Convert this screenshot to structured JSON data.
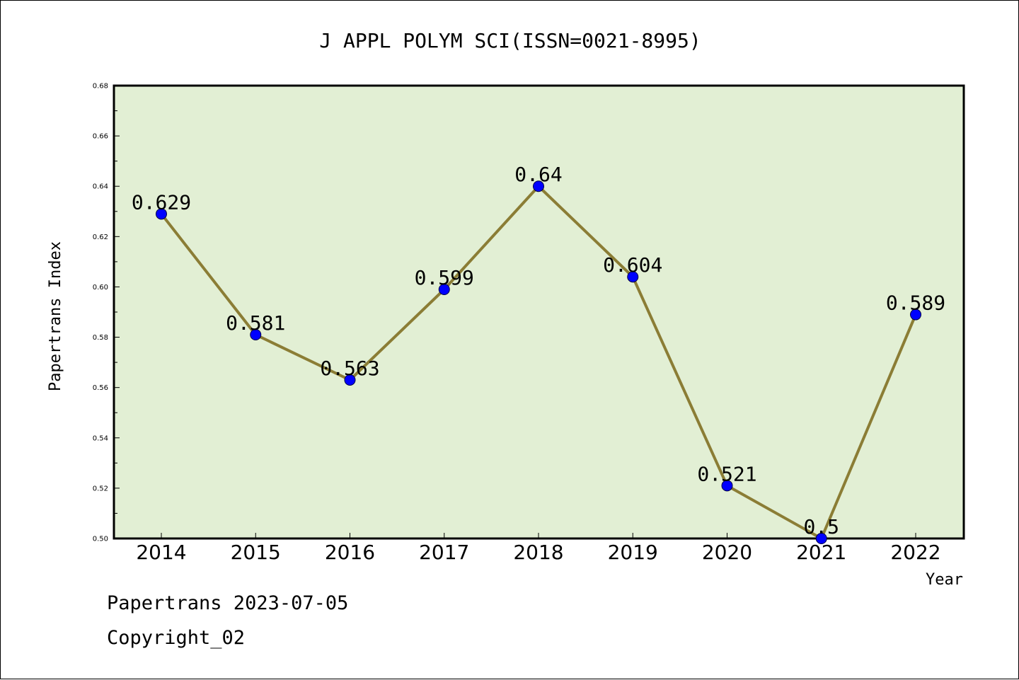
{
  "chart_data": {
    "type": "line",
    "title": "J APPL POLYM SCI(ISSN=0021-8995)",
    "xlabel": "Year",
    "ylabel": "Papertrans Index",
    "categories": [
      "2014",
      "2015",
      "2016",
      "2017",
      "2018",
      "2019",
      "2020",
      "2021",
      "2022"
    ],
    "series": [
      {
        "values": [
          0.629,
          0.581,
          0.563,
          0.599,
          0.64,
          0.604,
          0.521,
          0.5,
          0.589
        ],
        "labels": [
          "0.629",
          "0.581",
          "0.563",
          "0.599",
          "0.64",
          "0.604",
          "0.521",
          "0.5",
          "0.589"
        ]
      }
    ],
    "ylim": [
      0.5,
      0.68
    ],
    "yticks": [
      "0.50",
      "0.52",
      "0.54",
      "0.56",
      "0.58",
      "0.60",
      "0.62",
      "0.64",
      "0.66",
      "0.68"
    ],
    "grid": false,
    "legend": "none",
    "colors": {
      "plot_background": "#e2efd4",
      "line": "#8b7d35",
      "marker": "#0000ff"
    }
  },
  "footer": {
    "source_line": "Papertrans 2023-07-05",
    "copyright": "Copyright_02"
  }
}
